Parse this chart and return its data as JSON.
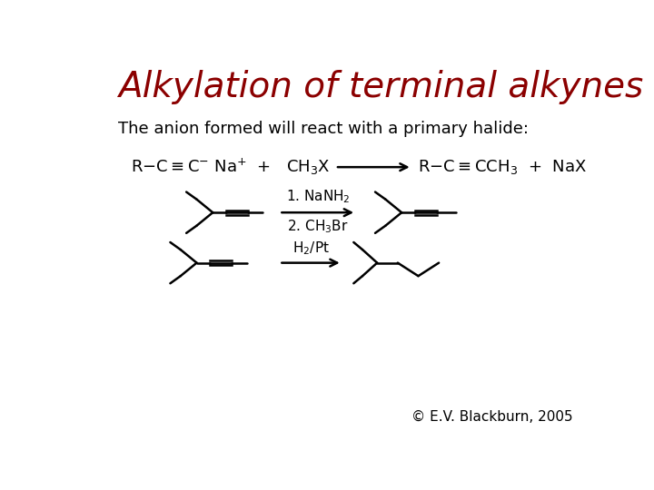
{
  "title": "Alkylation of terminal alkynes",
  "title_color": "#8B0000",
  "title_fontsize": 28,
  "subtitle": "The anion formed will react with a primary halide:",
  "subtitle_fontsize": 13,
  "copyright": "© E.V. Blackburn, 2005",
  "copyright_fontsize": 11,
  "bg_color": "#FFFFFF",
  "text_color": "#000000",
  "lw": 1.8
}
